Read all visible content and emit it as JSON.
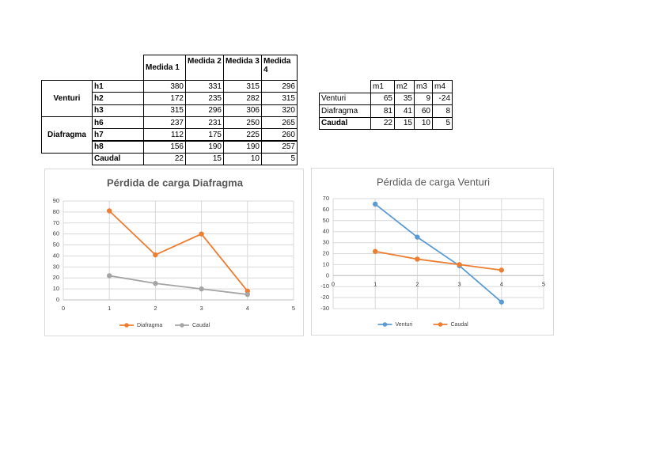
{
  "table1": {
    "columns": [
      "Medida 1",
      "Medida 2",
      "Medida 3",
      "Medida 4"
    ],
    "groups": [
      "Venturi",
      "Diafragma"
    ],
    "rows": [
      {
        "label": "h1",
        "values": [
          380,
          331,
          315,
          296
        ]
      },
      {
        "label": "h2",
        "values": [
          172,
          235,
          282,
          315
        ]
      },
      {
        "label": "h3",
        "values": [
          315,
          296,
          306,
          320
        ]
      },
      {
        "label": "h6",
        "values": [
          237,
          231,
          250,
          265
        ]
      },
      {
        "label": "h7",
        "values": [
          112,
          175,
          225,
          260
        ]
      },
      {
        "label": "h8",
        "values": [
          156,
          190,
          190,
          257
        ]
      },
      {
        "label": "Caudal",
        "values": [
          22,
          15,
          10,
          5
        ]
      }
    ]
  },
  "table2": {
    "columns": [
      "m1",
      "m2",
      "m3",
      "m4"
    ],
    "rows": [
      {
        "label": "Venturi",
        "values": [
          65,
          35,
          9,
          -24
        ]
      },
      {
        "label": "Diafragma",
        "values": [
          81,
          41,
          60,
          8
        ]
      },
      {
        "label": "Caudal",
        "values": [
          22,
          15,
          10,
          5
        ]
      }
    ]
  },
  "chart_data": [
    {
      "type": "line",
      "title": "Pérdida de carga Diafragma",
      "x": [
        1,
        2,
        3,
        4
      ],
      "series": [
        {
          "name": "Diafragma",
          "color": "#ed7d31",
          "values": [
            81,
            41,
            60,
            8
          ]
        },
        {
          "name": "Caudal",
          "color": "#a5a5a5",
          "values": [
            22,
            15,
            10,
            5
          ]
        }
      ],
      "xlim": [
        0,
        5
      ],
      "xticks": [
        0,
        1,
        2,
        3,
        4,
        5
      ],
      "ylim": [
        0,
        90
      ],
      "yticks": [
        0,
        10,
        20,
        30,
        40,
        50,
        60,
        70,
        80,
        90
      ],
      "grid": true,
      "legend": "bottom"
    },
    {
      "type": "line",
      "title": "Pérdida de carga Venturi",
      "x": [
        1,
        2,
        3,
        4
      ],
      "series": [
        {
          "name": "Venturi",
          "color": "#5b9bd5",
          "values": [
            65,
            35,
            9,
            -24
          ]
        },
        {
          "name": "Caudal",
          "color": "#ed7d31",
          "values": [
            22,
            15,
            10,
            5
          ]
        }
      ],
      "xlim": [
        0,
        5
      ],
      "xticks": [
        0,
        1,
        2,
        3,
        4,
        5
      ],
      "ylim": [
        -30,
        70
      ],
      "yticks": [
        -30,
        -20,
        -10,
        0,
        10,
        20,
        30,
        40,
        50,
        60,
        70
      ],
      "grid": true,
      "legend": "bottom"
    }
  ]
}
